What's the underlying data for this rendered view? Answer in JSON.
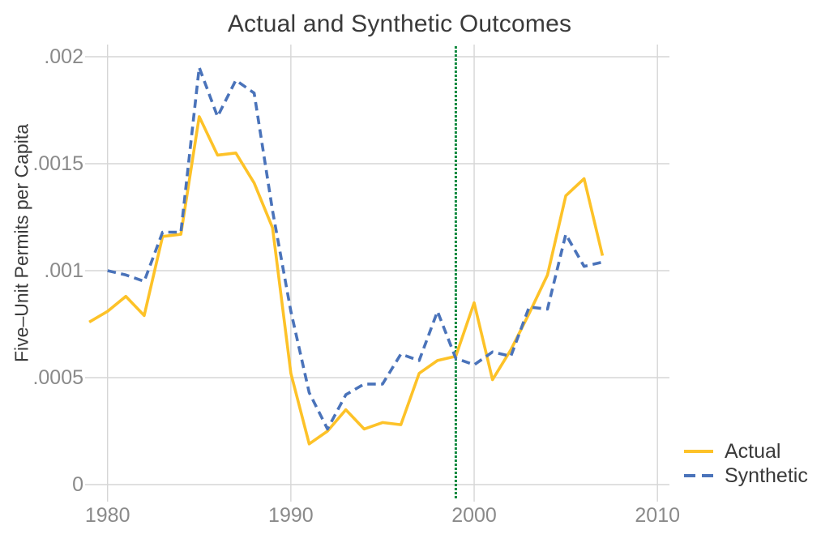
{
  "chart_data": {
    "type": "line",
    "title": "Actual and Synthetic Outcomes",
    "ylabel": "Five–Unit Permits per Capita",
    "xlabel": "",
    "x_ticks": [
      "1980",
      "1990",
      "2000",
      "2010"
    ],
    "x_tick_years": [
      1980,
      1990,
      2000,
      2010
    ],
    "y_ticks": [
      {
        "label": "0",
        "value": 0
      },
      {
        "label": ".0005",
        "value": 0.0005
      },
      {
        "label": ".001",
        "value": 0.001
      },
      {
        "label": ".0015",
        "value": 0.0015
      },
      {
        "label": ".002",
        "value": 0.002
      }
    ],
    "xlim": [
      1979.65,
      2010.65
    ],
    "ylim": [
      0,
      0.002055
    ],
    "grid": true,
    "treatment_line": {
      "x": 1999,
      "style": "dotted",
      "color": "#128a40"
    },
    "series": [
      {
        "name": "Actual",
        "style": "solid",
        "color": "#fdc228",
        "x": [
          1979,
          1980,
          1981,
          1982,
          1983,
          1984,
          1985,
          1986,
          1987,
          1988,
          1989,
          1990,
          1991,
          1992,
          1993,
          1994,
          1995,
          1996,
          1997,
          1998,
          1999,
          2000,
          2001,
          2002,
          2003,
          2004,
          2005,
          2006,
          2007
        ],
        "values": [
          0.00076,
          0.00081,
          0.00088,
          0.00079,
          0.00116,
          0.00117,
          0.00172,
          0.00154,
          0.00155,
          0.00141,
          0.0012,
          0.00052,
          0.00019,
          0.00025,
          0.00035,
          0.00026,
          0.00029,
          0.00028,
          0.00052,
          0.00058,
          0.0006,
          0.00085,
          0.00049,
          0.00063,
          0.0008,
          0.00098,
          0.00135,
          0.00143,
          0.00107
        ]
      },
      {
        "name": "Synthetic",
        "style": "dashed",
        "color": "#4a73ba",
        "x": [
          1980,
          1981,
          1982,
          1983,
          1984,
          1985,
          1986,
          1987,
          1988,
          1989,
          1990,
          1991,
          1992,
          1993,
          1994,
          1995,
          1996,
          1997,
          1998,
          1999,
          2000,
          2001,
          2002,
          2003,
          2004,
          2005,
          2006,
          2007
        ],
        "values": [
          0.001,
          0.00098,
          0.00095,
          0.00118,
          0.00118,
          0.00195,
          0.00172,
          0.00189,
          0.00183,
          0.00128,
          0.00081,
          0.00043,
          0.00026,
          0.00042,
          0.00047,
          0.00047,
          0.00061,
          0.00058,
          0.00081,
          0.00059,
          0.00056,
          0.00062,
          0.0006,
          0.00083,
          0.00082,
          0.00117,
          0.00102,
          0.00104
        ]
      }
    ],
    "legend": {
      "position": "bottom-right",
      "entries": [
        {
          "label": "Actual"
        },
        {
          "label": "Synthetic"
        }
      ]
    },
    "colors": {
      "grid": "#d6d6d6",
      "tick_label": "#8a8a8a",
      "text": "#3a3a3a",
      "background": "#ffffff"
    }
  }
}
